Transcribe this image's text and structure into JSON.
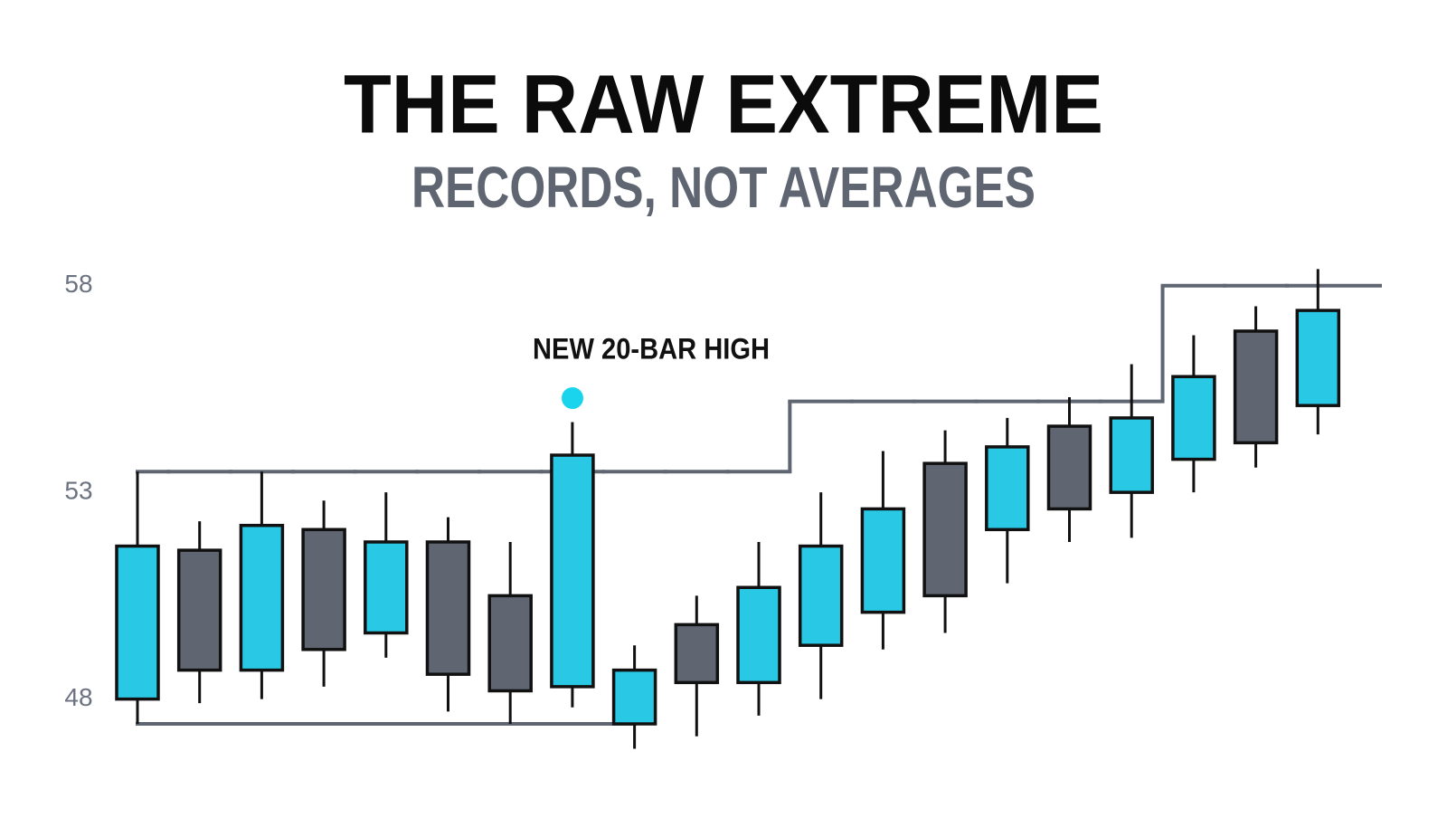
{
  "chart_data": {
    "type": "candlestick",
    "title": "THE RAW EXTREME",
    "subtitle": "RECORDS, NOT AVERAGES",
    "annotation": "NEW 20-BAR HIGH",
    "open": [
      48.0,
      51.6,
      48.7,
      52.1,
      49.6,
      51.8,
      50.5,
      48.3,
      47.4,
      49.8,
      48.4,
      49.3,
      50.1,
      53.7,
      52.1,
      54.6,
      53.0,
      53.8,
      56.9,
      55.1
    ],
    "high": [
      53.5,
      52.3,
      53.5,
      52.8,
      53.0,
      52.4,
      51.8,
      54.7,
      49.3,
      50.5,
      51.8,
      53.0,
      54.0,
      54.5,
      54.8,
      55.3,
      56.1,
      56.8,
      57.5,
      58.4
    ],
    "low": [
      47.4,
      47.9,
      48.0,
      48.3,
      49.0,
      47.7,
      47.4,
      47.8,
      46.8,
      47.1,
      47.6,
      48.0,
      49.2,
      49.6,
      50.8,
      51.8,
      51.9,
      53.0,
      53.6,
      54.4
    ],
    "close": [
      51.7,
      48.7,
      52.2,
      49.2,
      51.8,
      48.6,
      48.2,
      53.9,
      48.7,
      48.4,
      50.7,
      51.7,
      52.6,
      50.5,
      54.1,
      52.6,
      54.8,
      55.8,
      54.2,
      57.4
    ],
    "upper_channel": [
      53.5,
      53.5,
      53.5,
      53.5,
      53.5,
      53.5,
      53.5,
      53.5,
      53.5,
      53.5,
      53.5,
      55.2,
      55.2,
      55.2,
      55.2,
      55.2,
      55.2,
      58.0,
      58.0,
      58.0
    ],
    "lower_channel": [
      47.4,
      47.4,
      47.4,
      47.4,
      47.4,
      47.4,
      47.4,
      47.4,
      47.4,
      null,
      null,
      null,
      null,
      null,
      null,
      null,
      null,
      null,
      null,
      null
    ],
    "up_color": "#29c9e6",
    "down_color": "#5f6672",
    "channel_color": "#5f6672",
    "ylim": [
      46,
      59
    ],
    "yticks": [
      48,
      53,
      58
    ]
  }
}
